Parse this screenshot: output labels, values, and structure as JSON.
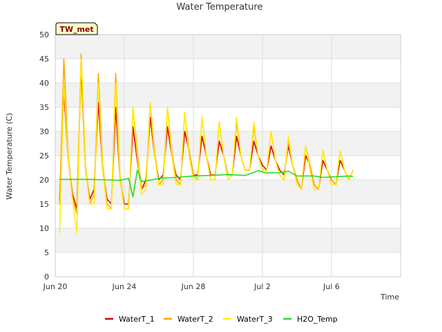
{
  "chart_data": {
    "type": "line",
    "title": "Water Temperature",
    "xlabel": "Time",
    "ylabel": "Water Temperature (C)",
    "station_badge": "TW_met",
    "ylim": [
      0,
      50
    ],
    "yticks": [
      0,
      5,
      10,
      15,
      20,
      25,
      30,
      35,
      40,
      45,
      50
    ],
    "xlim": [
      "2024-06-20",
      "2024-07-10"
    ],
    "xticks": [
      {
        "label": "Jun 20",
        "x": "2024-06-20"
      },
      {
        "label": "Jun 24",
        "x": "2024-06-24"
      },
      {
        "label": "Jun 28",
        "x": "2024-06-28"
      },
      {
        "label": "Jul 2",
        "x": "2024-07-02"
      },
      {
        "label": "Jul 6",
        "x": "2024-07-06"
      }
    ],
    "grid": true,
    "legend_placement": "bottom",
    "series": [
      {
        "name": "WaterT_1",
        "color": "#dd0000",
        "x": [
          "2024-06-20 06:00",
          "2024-06-20 12:00",
          "2024-06-20 18:00",
          "2024-06-21 00:00",
          "2024-06-21 06:00",
          "2024-06-21 12:00",
          "2024-06-21 18:00",
          "2024-06-22 00:00",
          "2024-06-22 06:00",
          "2024-06-22 12:00",
          "2024-06-22 18:00",
          "2024-06-23 00:00",
          "2024-06-23 06:00",
          "2024-06-23 12:00",
          "2024-06-23 18:00",
          "2024-06-24 00:00",
          "2024-06-24 06:00",
          "2024-06-24 12:00",
          "2024-06-24 18:00",
          "2024-06-25 00:00",
          "2024-06-25 06:00",
          "2024-06-25 12:00",
          "2024-06-25 18:00",
          "2024-06-26 00:00",
          "2024-06-26 06:00",
          "2024-06-26 12:00",
          "2024-06-26 18:00",
          "2024-06-27 00:00",
          "2024-06-27 06:00",
          "2024-06-27 12:00",
          "2024-06-27 18:00",
          "2024-06-28 00:00",
          "2024-06-28 06:00",
          "2024-06-28 12:00",
          "2024-06-28 18:00",
          "2024-06-29 00:00",
          "2024-06-29 06:00",
          "2024-06-29 12:00",
          "2024-06-29 18:00",
          "2024-06-30 00:00",
          "2024-06-30 06:00",
          "2024-06-30 12:00",
          "2024-06-30 18:00",
          "2024-07-01 00:00",
          "2024-07-01 06:00",
          "2024-07-01 12:00",
          "2024-07-01 18:00",
          "2024-07-02 00:00",
          "2024-07-02 06:00",
          "2024-07-02 12:00",
          "2024-07-02 18:00",
          "2024-07-03 00:00",
          "2024-07-03 06:00",
          "2024-07-03 12:00",
          "2024-07-03 18:00",
          "2024-07-04 00:00",
          "2024-07-04 06:00",
          "2024-07-04 12:00",
          "2024-07-04 18:00",
          "2024-07-05 00:00",
          "2024-07-05 06:00",
          "2024-07-05 12:00",
          "2024-07-05 18:00",
          "2024-07-06 00:00",
          "2024-07-06 06:00",
          "2024-07-06 12:00",
          "2024-07-06 18:00",
          "2024-07-07 00:00",
          "2024-07-07 06:00"
        ],
        "values": [
          16,
          38,
          24,
          17,
          14,
          43,
          22,
          16,
          18,
          36,
          22,
          16,
          15,
          35,
          20,
          15,
          15,
          31,
          24,
          18,
          20,
          33,
          25,
          20,
          21,
          31,
          25,
          21,
          20,
          30,
          26,
          21,
          21,
          29,
          25,
          21,
          21,
          28,
          25,
          21,
          21,
          29,
          25,
          22,
          22,
          28,
          25,
          23,
          22,
          27,
          24,
          22,
          21,
          27,
          23,
          20,
          18,
          25,
          23,
          19,
          18,
          24,
          22,
          20,
          19,
          24,
          22,
          20,
          22
        ]
      },
      {
        "name": "WaterT_2",
        "color": "#ffa500",
        "x": [
          "2024-06-20 06:00",
          "2024-06-20 12:00",
          "2024-06-20 18:00",
          "2024-06-21 00:00",
          "2024-06-21 06:00",
          "2024-06-21 12:00",
          "2024-06-21 18:00",
          "2024-06-22 00:00",
          "2024-06-22 06:00",
          "2024-06-22 12:00",
          "2024-06-22 18:00",
          "2024-06-23 00:00",
          "2024-06-23 06:00",
          "2024-06-23 12:00",
          "2024-06-23 18:00",
          "2024-06-24 00:00",
          "2024-06-24 06:00",
          "2024-06-24 12:00",
          "2024-06-24 18:00",
          "2024-06-25 00:00",
          "2024-06-25 06:00",
          "2024-06-25 12:00",
          "2024-06-25 18:00",
          "2024-06-26 00:00",
          "2024-06-26 06:00",
          "2024-06-26 12:00",
          "2024-06-26 18:00",
          "2024-06-27 00:00",
          "2024-06-27 06:00",
          "2024-06-27 12:00",
          "2024-06-27 18:00",
          "2024-06-28 00:00",
          "2024-06-28 06:00",
          "2024-06-28 12:00",
          "2024-06-28 18:00",
          "2024-06-29 00:00",
          "2024-06-29 06:00",
          "2024-06-29 12:00",
          "2024-06-29 18:00",
          "2024-06-30 00:00",
          "2024-06-30 06:00",
          "2024-06-30 12:00",
          "2024-06-30 18:00",
          "2024-07-01 00:00",
          "2024-07-01 06:00",
          "2024-07-01 12:00",
          "2024-07-01 18:00",
          "2024-07-02 00:00",
          "2024-07-02 06:00",
          "2024-07-02 12:00",
          "2024-07-02 18:00",
          "2024-07-03 00:00",
          "2024-07-03 06:00",
          "2024-07-03 12:00",
          "2024-07-03 18:00",
          "2024-07-04 00:00",
          "2024-07-04 06:00",
          "2024-07-04 12:00",
          "2024-07-04 18:00",
          "2024-07-05 00:00",
          "2024-07-05 06:00",
          "2024-07-05 12:00",
          "2024-07-05 18:00",
          "2024-07-06 00:00",
          "2024-07-06 06:00",
          "2024-07-06 12:00",
          "2024-07-06 18:00",
          "2024-07-07 00:00",
          "2024-07-07 06:00"
        ],
        "values": [
          15,
          45,
          25,
          16,
          13,
          46,
          23,
          15,
          17,
          42,
          23,
          15,
          14,
          42,
          21,
          14,
          14,
          35,
          26,
          18,
          19,
          36,
          26,
          19,
          20,
          35,
          26,
          20,
          19,
          34,
          26,
          21,
          20,
          33,
          25,
          20,
          20,
          32,
          25,
          21,
          21,
          32,
          25,
          22,
          22,
          31,
          25,
          22,
          22,
          30,
          24,
          21,
          20,
          28,
          23,
          20,
          18,
          27,
          23,
          19,
          18,
          26,
          22,
          20,
          19,
          26,
          22,
          20,
          22
        ]
      },
      {
        "name": "WaterT_3",
        "color": "#ffee00",
        "x": [
          "2024-06-20 06:00",
          "2024-06-20 12:00",
          "2024-06-20 18:00",
          "2024-06-21 00:00",
          "2024-06-21 06:00",
          "2024-06-21 12:00",
          "2024-06-21 18:00",
          "2024-06-22 00:00",
          "2024-06-22 06:00",
          "2024-06-22 12:00",
          "2024-06-22 18:00",
          "2024-06-23 00:00",
          "2024-06-23 06:00",
          "2024-06-23 12:00",
          "2024-06-23 18:00",
          "2024-06-24 00:00",
          "2024-06-24 06:00",
          "2024-06-24 12:00",
          "2024-06-24 18:00",
          "2024-06-25 00:00",
          "2024-06-25 06:00",
          "2024-06-25 12:00",
          "2024-06-25 18:00",
          "2024-06-26 00:00",
          "2024-06-26 06:00",
          "2024-06-26 12:00",
          "2024-06-26 18:00",
          "2024-06-27 00:00",
          "2024-06-27 06:00",
          "2024-06-27 12:00",
          "2024-06-27 18:00",
          "2024-06-28 00:00",
          "2024-06-28 06:00",
          "2024-06-28 12:00",
          "2024-06-28 18:00",
          "2024-06-29 00:00",
          "2024-06-29 06:00",
          "2024-06-29 12:00",
          "2024-06-29 18:00",
          "2024-06-30 00:00",
          "2024-06-30 06:00",
          "2024-06-30 12:00",
          "2024-06-30 18:00",
          "2024-07-01 00:00",
          "2024-07-01 06:00",
          "2024-07-01 12:00",
          "2024-07-01 18:00",
          "2024-07-02 00:00",
          "2024-07-02 06:00",
          "2024-07-02 12:00",
          "2024-07-02 18:00",
          "2024-07-03 00:00",
          "2024-07-03 06:00",
          "2024-07-03 12:00",
          "2024-07-03 18:00",
          "2024-07-04 00:00",
          "2024-07-04 06:00",
          "2024-07-04 12:00",
          "2024-07-04 18:00",
          "2024-07-05 00:00",
          "2024-07-05 06:00",
          "2024-07-05 12:00",
          "2024-07-05 18:00",
          "2024-07-06 00:00",
          "2024-07-06 06:00",
          "2024-07-06 12:00",
          "2024-07-06 18:00",
          "2024-07-07 00:00",
          "2024-07-07 06:00"
        ],
        "values": [
          9,
          40,
          24,
          16,
          9,
          45,
          22,
          15,
          15,
          40,
          22,
          14,
          14,
          40,
          20,
          14,
          14,
          35,
          25,
          17,
          18,
          36,
          25,
          19,
          19,
          35,
          25,
          19,
          19,
          34,
          25,
          20,
          20,
          33,
          25,
          20,
          20,
          32,
          25,
          20,
          21,
          33,
          25,
          22,
          22,
          32,
          25,
          22,
          22,
          30,
          24,
          21,
          20,
          29,
          23,
          19,
          18,
          27,
          22,
          18,
          18,
          26,
          22,
          19,
          19,
          26,
          22,
          20,
          22
        ]
      },
      {
        "name": "H2O_Temp",
        "color": "#22dd22",
        "x": [
          "2024-06-20 06:00",
          "2024-06-21 00:00",
          "2024-06-22 00:00",
          "2024-06-23 00:00",
          "2024-06-23 18:00",
          "2024-06-24 06:00",
          "2024-06-24 12:00",
          "2024-06-24 18:00",
          "2024-06-25 00:00",
          "2024-06-26 00:00",
          "2024-06-27 00:00",
          "2024-06-28 00:00",
          "2024-06-29 00:00",
          "2024-06-30 00:00",
          "2024-07-01 00:00",
          "2024-07-01 18:00",
          "2024-07-02 06:00",
          "2024-07-03 00:00",
          "2024-07-03 12:00",
          "2024-07-04 00:00",
          "2024-07-05 00:00",
          "2024-07-05 12:00",
          "2024-07-06 00:00",
          "2024-07-07 00:00",
          "2024-07-07 06:00"
        ],
        "values": [
          20.1,
          20.1,
          20.1,
          20.0,
          19.9,
          20.3,
          16.5,
          22.0,
          19.6,
          20.3,
          20.5,
          20.8,
          20.9,
          21.1,
          20.9,
          21.9,
          21.4,
          21.5,
          21.8,
          20.8,
          20.8,
          20.5,
          20.6,
          20.8,
          20.7
        ]
      }
    ]
  }
}
